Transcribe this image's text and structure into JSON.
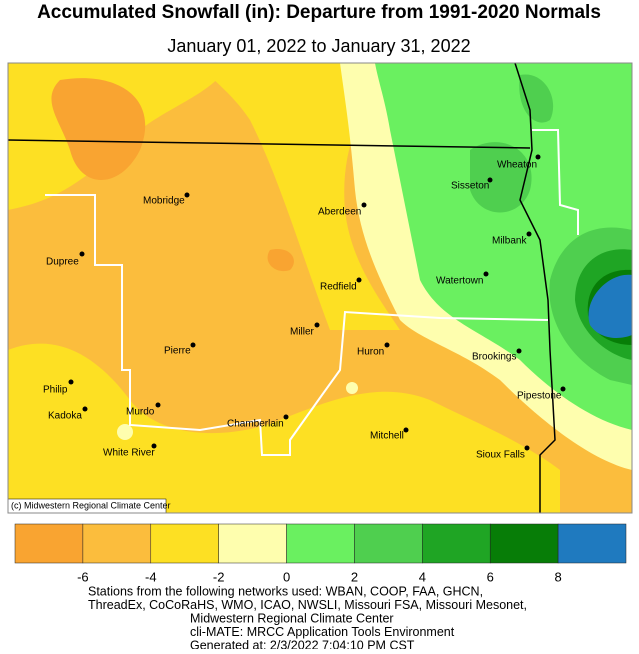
{
  "header": {
    "title": "Accumulated Snowfall (in): Departure from 1991-2020 Normals",
    "subtitle": "January 01, 2022 to January 31, 2022"
  },
  "map": {
    "copyright": "(c) Midwestern Regional Climate Center",
    "cities": [
      "Mobridge",
      "Aberdeen",
      "Dupree",
      "Redfield",
      "Miller",
      "Pierre",
      "Huron",
      "Philip",
      "Kadoka",
      "Murdo",
      "Chamberlain",
      "Mitchell",
      "White River",
      "Wheaton",
      "Sisseton",
      "Milbank",
      "Watertown",
      "Brookings",
      "Pipestone",
      "Sioux Falls"
    ]
  },
  "legend": {
    "colors": [
      "#f9a431",
      "#fbbd3d",
      "#fde023",
      "#fefeae",
      "#6af060",
      "#4fcf4f",
      "#1fa524",
      "#077d07",
      "#1f7abf"
    ],
    "ticks": [
      -6,
      -4,
      -2,
      0,
      2,
      4,
      6,
      8
    ]
  },
  "footer": {
    "lines": [
      "Stations from the following networks used: WBAN, COOP, FAA, GHCN,",
      "ThreadEx, CoCoRaHS, WMO, ICAO, NWSLI, Missouri FSA, Missouri Mesonet,",
      "Midwestern Regional Climate Center",
      "cli-MATE: MRCC Application Tools Environment",
      "Generated at: 2/3/2022 7:04:10 PM CST"
    ]
  }
}
